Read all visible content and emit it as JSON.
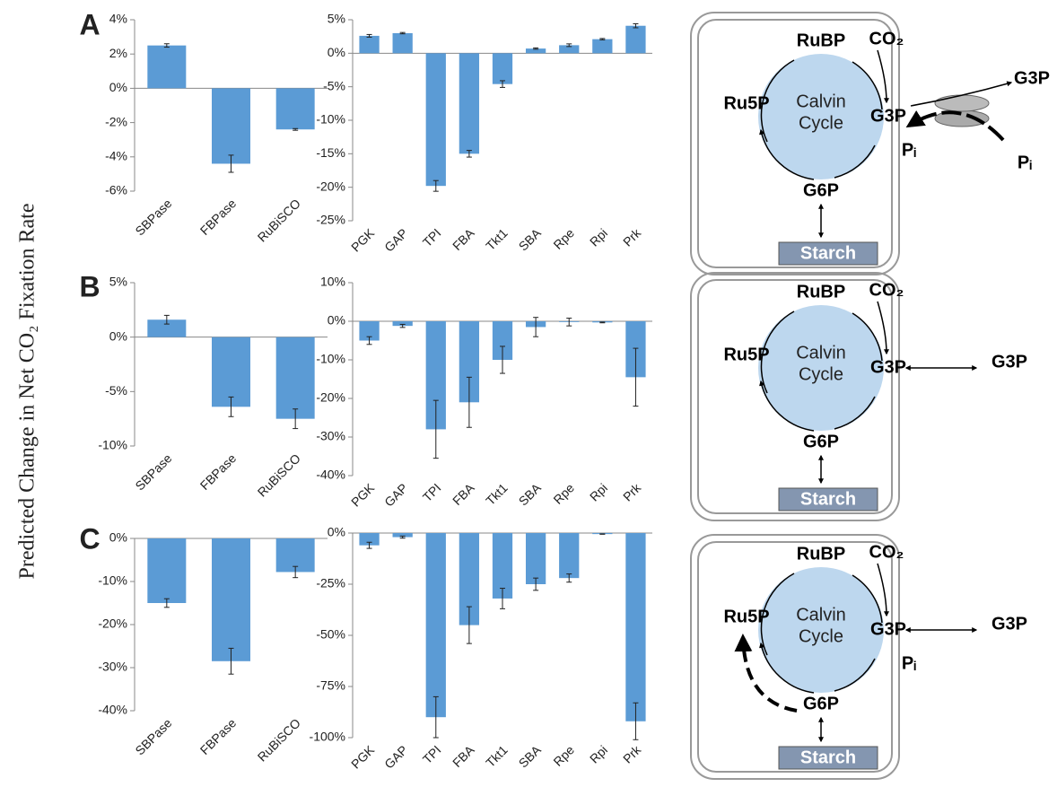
{
  "y_axis_label": "Predicted Change in Net CO₂ Fixation Rate",
  "panels": [
    "A",
    "B",
    "C"
  ],
  "chart_data": [
    {
      "type": "bar",
      "categories": [
        "SBPase",
        "FBPase",
        "RuBiSCO"
      ],
      "values": [
        2.5,
        -4.4,
        -2.4
      ],
      "errors": [
        0.1,
        0.5,
        0.05
      ],
      "color": "#5b9bd5",
      "ylim": [
        -6,
        4
      ],
      "yticks": [
        {
          "value": -6,
          "label": "-6%"
        },
        {
          "value": -4,
          "label": "-4%"
        },
        {
          "value": -2,
          "label": "-2%"
        },
        {
          "value": 0,
          "label": "0%"
        },
        {
          "value": 2,
          "label": "2%"
        },
        {
          "value": 4,
          "label": "4%"
        }
      ]
    },
    {
      "type": "bar",
      "categories": [
        "PGK",
        "GAP",
        "TPI",
        "FBA",
        "Tkt1",
        "SBA",
        "Rpe",
        "Rpi",
        "Prk"
      ],
      "values": [
        2.6,
        3.0,
        -19.8,
        -15.0,
        -4.6,
        0.7,
        1.2,
        2.1,
        4.1
      ],
      "errors": [
        0.2,
        0.1,
        0.8,
        0.5,
        0.5,
        0.1,
        0.2,
        0.1,
        0.3
      ],
      "color": "#5b9bd5",
      "ylim": [
        -25,
        5
      ],
      "yticks": [
        {
          "value": -25,
          "label": "-25%"
        },
        {
          "value": -20,
          "label": "-20%"
        },
        {
          "value": -15,
          "label": "-15%"
        },
        {
          "value": -10,
          "label": "-10%"
        },
        {
          "value": -5,
          "label": "-5%"
        },
        {
          "value": 0,
          "label": "0%"
        },
        {
          "value": 5,
          "label": "5%"
        }
      ]
    },
    {
      "type": "bar",
      "categories": [
        "SBPase",
        "FBPase",
        "RuBiSCO"
      ],
      "values": [
        1.6,
        -6.4,
        -7.5
      ],
      "errors": [
        0.4,
        0.9,
        0.9
      ],
      "color": "#5b9bd5",
      "ylim": [
        -10,
        5
      ],
      "yticks": [
        {
          "value": -10,
          "label": "-10%"
        },
        {
          "value": -5,
          "label": "-5%"
        },
        {
          "value": 0,
          "label": "0%"
        },
        {
          "value": 5,
          "label": "5%"
        }
      ]
    },
    {
      "type": "bar",
      "categories": [
        "PGK",
        "GAP",
        "TPI",
        "FBA",
        "Tkt1",
        "SBA",
        "Rpe",
        "Rpi",
        "Prk"
      ],
      "values": [
        -5,
        -1.2,
        -28,
        -21,
        -10,
        -1.5,
        -0.2,
        -0.3,
        -14.5
      ],
      "errors": [
        1,
        0.4,
        7.5,
        6.5,
        3.5,
        2.5,
        1,
        0.1,
        7.5
      ],
      "color": "#5b9bd5",
      "ylim": [
        -40,
        10
      ],
      "yticks": [
        {
          "value": -40,
          "label": "-40%"
        },
        {
          "value": -30,
          "label": "-30%"
        },
        {
          "value": -20,
          "label": "-20%"
        },
        {
          "value": -10,
          "label": "-10%"
        },
        {
          "value": 0,
          "label": "0%"
        },
        {
          "value": 10,
          "label": "10%"
        }
      ]
    },
    {
      "type": "bar",
      "categories": [
        "SBPase",
        "FBPase",
        "RuBiSCO"
      ],
      "values": [
        -15,
        -28.5,
        -7.8
      ],
      "errors": [
        1,
        3,
        1.3
      ],
      "color": "#5b9bd5",
      "ylim": [
        -40,
        0
      ],
      "yticks": [
        {
          "value": -40,
          "label": "-40%"
        },
        {
          "value": -30,
          "label": "-30%"
        },
        {
          "value": -20,
          "label": "-20%"
        },
        {
          "value": -10,
          "label": "-10%"
        },
        {
          "value": 0,
          "label": "0%"
        }
      ]
    },
    {
      "type": "bar",
      "categories": [
        "PGK",
        "GAP",
        "TPI",
        "FBA",
        "Tkt1",
        "SBA",
        "Rpe",
        "Rpi",
        "Prk"
      ],
      "values": [
        -6,
        -2,
        -90,
        -45,
        -32,
        -25,
        -22,
        -0.5,
        -92
      ],
      "errors": [
        1.5,
        0.5,
        10,
        9,
        5,
        3,
        2,
        0.1,
        9
      ],
      "color": "#5b9bd5",
      "ylim": [
        -100,
        0
      ],
      "yticks": [
        {
          "value": -100,
          "label": "-100%"
        },
        {
          "value": -75,
          "label": "-75%"
        },
        {
          "value": -50,
          "label": "-50%"
        },
        {
          "value": -25,
          "label": "-25%"
        },
        {
          "value": 0,
          "label": "0%"
        }
      ]
    }
  ],
  "diagrams": [
    {
      "rubp": "RuBP",
      "co2": "CO₂",
      "ru5p": "Ru5P",
      "cycle_line1": "Calvin",
      "cycle_line2": "Cycle",
      "g3p": "G3P",
      "g3p_out": "G3P",
      "pi_in": "Pᵢ",
      "pi_out": "Pᵢ",
      "g6p": "G6P",
      "starch": "Starch"
    },
    {
      "rubp": "RuBP",
      "co2": "CO₂",
      "ru5p": "Ru5P",
      "cycle_line1": "Calvin",
      "cycle_line2": "Cycle",
      "g3p": "G3P",
      "g3p_out": "G3P",
      "g6p": "G6P",
      "starch": "Starch"
    },
    {
      "rubp": "RuBP",
      "co2": "CO₂",
      "ru5p": "Ru5P",
      "cycle_line1": "Calvin",
      "cycle_line2": "Cycle",
      "g3p": "G3P",
      "g3p_out": "G3P",
      "pi_in": "Pᵢ",
      "g6p": "G6P",
      "starch": "Starch"
    }
  ]
}
